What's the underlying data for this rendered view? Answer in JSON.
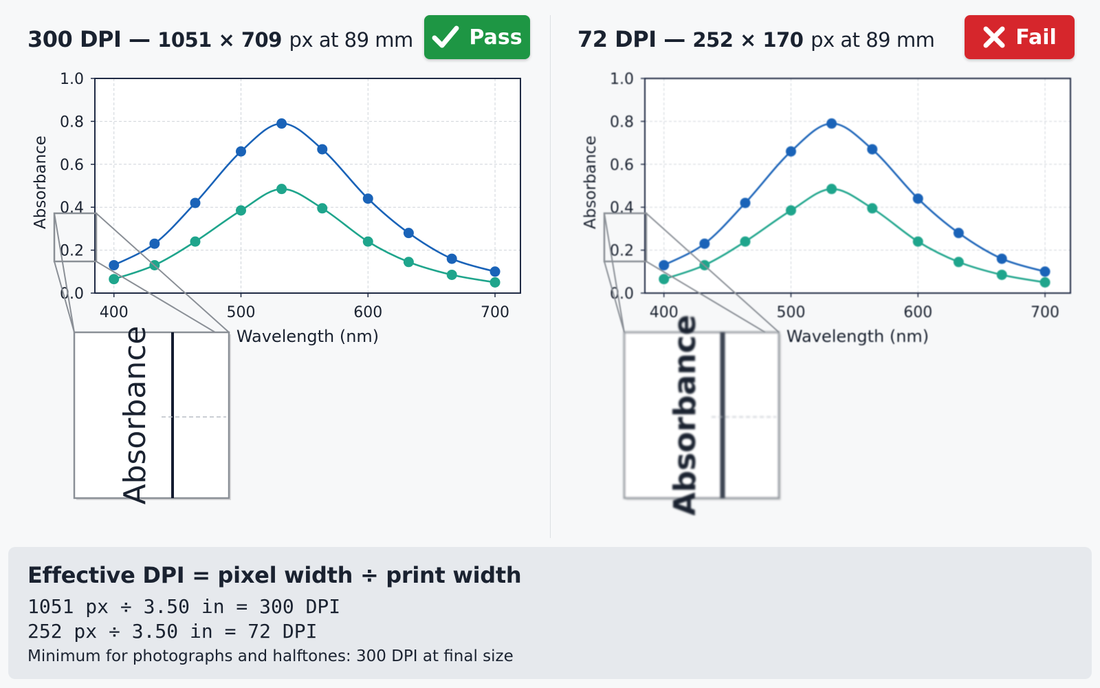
{
  "panels": [
    {
      "title_dpi": "300 DPI —",
      "title_dims": "1051 × 709",
      "title_unit": "px at 89 mm",
      "badge": "Pass",
      "badge_icon": "check-icon",
      "badge_color": "#1e9644"
    },
    {
      "title_dpi": "72 DPI —",
      "title_dims": "252 × 170",
      "title_unit": "px at 89 mm",
      "badge": "Fail",
      "badge_icon": "x-icon",
      "badge_color": "#d6262c"
    }
  ],
  "chart_data": [
    {
      "type": "line",
      "xlabel": "Wavelength (nm)",
      "ylabel": "Absorbance",
      "xlim": [
        385,
        720
      ],
      "ylim": [
        0,
        1.0
      ],
      "xticks": [
        400,
        500,
        600,
        700
      ],
      "yticks": [
        "0.0",
        "0.2",
        "0.4",
        "0.6",
        "0.8",
        "1.0"
      ],
      "grid": true,
      "x": [
        400,
        432,
        464,
        500,
        532,
        564,
        600,
        632,
        666,
        700
      ],
      "series": [
        {
          "color": "#1a63b8",
          "values": [
            0.13,
            0.23,
            0.42,
            0.66,
            0.79,
            0.67,
            0.44,
            0.28,
            0.16,
            0.1
          ]
        },
        {
          "color": "#1fa58c",
          "values": [
            0.065,
            0.13,
            0.24,
            0.385,
            0.485,
            0.395,
            0.24,
            0.145,
            0.085,
            0.05
          ]
        }
      ],
      "zoom_label": "Absorbance"
    },
    {
      "type": "line",
      "xlabel": "Wavelength (nm)",
      "ylabel": "Absorbance",
      "xlim": [
        385,
        720
      ],
      "ylim": [
        0,
        1.0
      ],
      "xticks": [
        400,
        500,
        600,
        700
      ],
      "yticks": [
        "0.0",
        "0.2",
        "0.4",
        "0.6",
        "0.8",
        "1.0"
      ],
      "grid": true,
      "x": [
        400,
        432,
        464,
        500,
        532,
        564,
        600,
        632,
        666,
        700
      ],
      "series": [
        {
          "color": "#1a63b8",
          "values": [
            0.13,
            0.23,
            0.42,
            0.66,
            0.79,
            0.67,
            0.44,
            0.28,
            0.16,
            0.1
          ]
        },
        {
          "color": "#1fa58c",
          "values": [
            0.065,
            0.13,
            0.24,
            0.385,
            0.485,
            0.395,
            0.24,
            0.145,
            0.085,
            0.05
          ]
        }
      ],
      "zoom_label": "Absorbance"
    }
  ],
  "formula": {
    "heading": "Effective DPI = pixel width ÷ print width",
    "line1": "1051 px ÷ 3.50 in = 300 DPI",
    "line2": "252 px ÷ 3.50 in = 72 DPI",
    "note": "Minimum for photographs and halftones: 300 DPI at final size"
  }
}
